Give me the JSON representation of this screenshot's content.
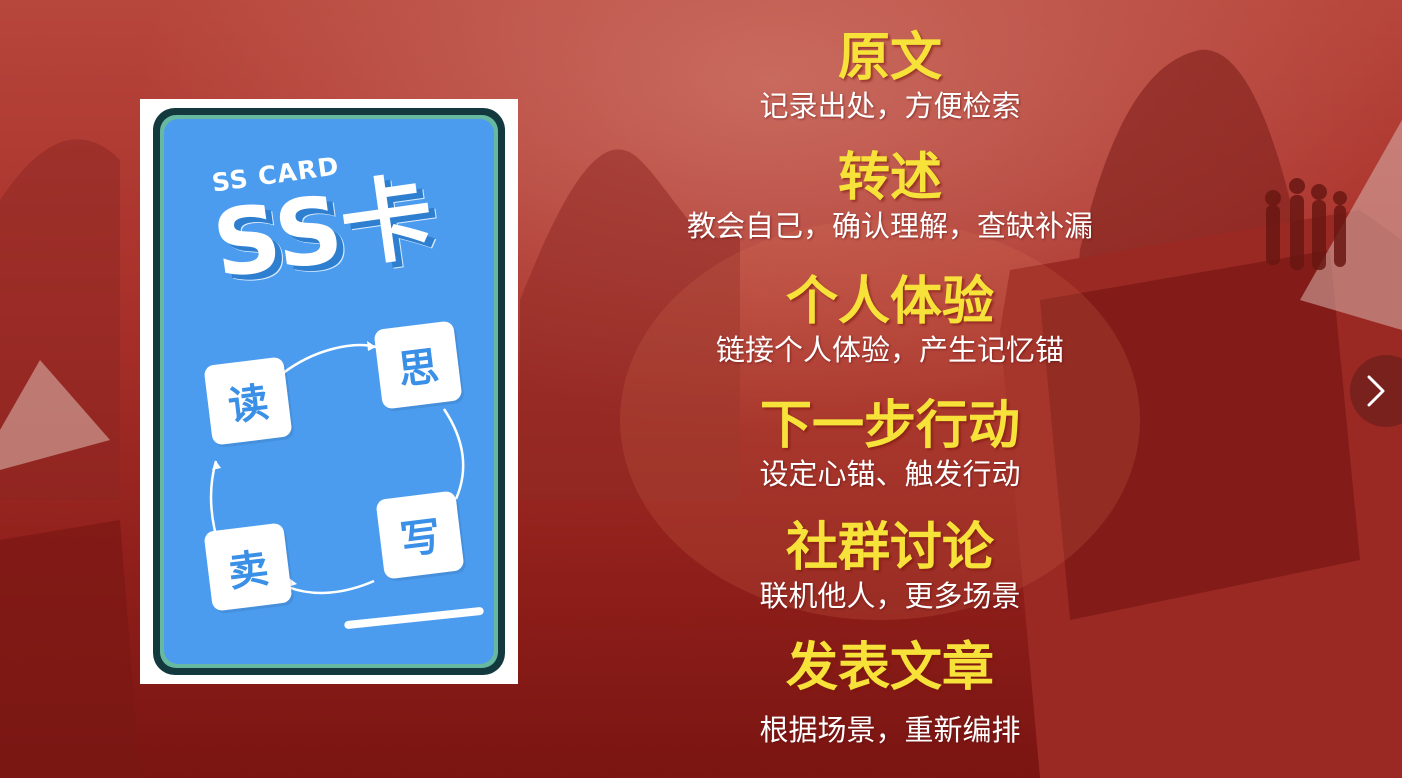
{
  "card": {
    "brand_small": "SS CARD",
    "brand_big": "SS卡",
    "tiles": {
      "read": "读",
      "think": "思",
      "write": "写",
      "sell": "卖"
    }
  },
  "steps": [
    {
      "title": "原文",
      "desc": "记录出处，方便检索"
    },
    {
      "title": "转述",
      "desc": "教会自己，确认理解，查缺补漏"
    },
    {
      "title": "个人体验",
      "desc": "链接个人体验，产生记忆锚"
    },
    {
      "title": "下一步行动",
      "desc": "设定心锚、触发行动"
    },
    {
      "title": "社群讨论",
      "desc": "联机他人，更多场景"
    },
    {
      "title": "发表文章",
      "desc": "根据场景，重新编排"
    }
  ],
  "nav": {
    "next_icon": "chevron-right-icon"
  },
  "colors": {
    "heading": "#f7e23a",
    "card_blue": "#4b9cef",
    "background": "#a8302a"
  }
}
